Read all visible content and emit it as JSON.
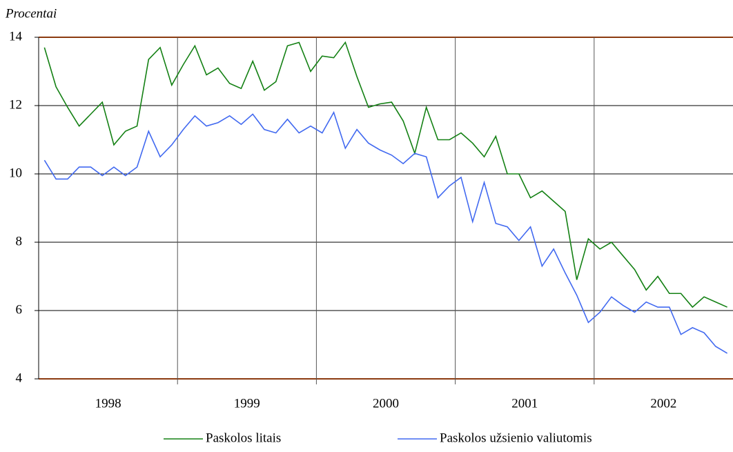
{
  "chart_data": {
    "type": "line",
    "y_axis_label": "Procentai",
    "categories": [
      null,
      null,
      null,
      null,
      null,
      "1998",
      null,
      null,
      null,
      null,
      null,
      null,
      null,
      null,
      null,
      null,
      null,
      "1999",
      null,
      null,
      null,
      null,
      null,
      null,
      null,
      null,
      null,
      null,
      null,
      "2000",
      null,
      null,
      null,
      null,
      null,
      null,
      null,
      null,
      null,
      null,
      null,
      "2001",
      null,
      null,
      null,
      null,
      null,
      null,
      null,
      null,
      null,
      null,
      null,
      "2002",
      null,
      null,
      null,
      null,
      null,
      null
    ],
    "series": [
      {
        "name": "Paskolos litais",
        "color": "#138013",
        "values": [
          13.7,
          12.55,
          11.95,
          11.4,
          11.75,
          12.1,
          10.85,
          11.25,
          11.4,
          13.35,
          13.7,
          12.6,
          13.2,
          13.75,
          12.9,
          13.1,
          12.65,
          12.5,
          13.3,
          12.45,
          12.7,
          13.75,
          13.85,
          13.0,
          13.45,
          13.4,
          13.85,
          12.85,
          11.95,
          12.05,
          12.1,
          11.55,
          10.6,
          11.95,
          11.0,
          11.0,
          11.2,
          10.9,
          10.5,
          11.1,
          10.0,
          10.0,
          9.3,
          9.5,
          9.2,
          8.9,
          6.9,
          8.1,
          7.8,
          8.0,
          7.6,
          7.2,
          6.6,
          7.0,
          6.5,
          6.5,
          6.1,
          6.4,
          6.25,
          6.1
        ]
      },
      {
        "name": "Paskolos užsienio valiutomis",
        "color": "#4169f0",
        "values": [
          10.4,
          9.85,
          9.85,
          10.2,
          10.2,
          9.95,
          10.2,
          9.95,
          10.2,
          11.25,
          10.5,
          10.85,
          11.3,
          11.7,
          11.4,
          11.5,
          11.7,
          11.45,
          11.75,
          11.3,
          11.2,
          11.6,
          11.2,
          11.4,
          11.2,
          11.8,
          10.75,
          11.3,
          10.9,
          10.7,
          10.55,
          10.3,
          10.6,
          10.5,
          9.3,
          9.65,
          9.9,
          8.6,
          9.75,
          8.55,
          8.45,
          8.05,
          8.45,
          7.3,
          7.8,
          7.1,
          6.45,
          5.65,
          5.95,
          6.4,
          6.15,
          5.95,
          6.25,
          6.1,
          6.1,
          5.3,
          5.5,
          5.35,
          4.95,
          4.75
        ]
      }
    ],
    "ylim": [
      4,
      14
    ],
    "yticks": [
      4,
      6,
      8,
      10,
      12,
      14
    ],
    "grid": true,
    "legend": "bottom"
  }
}
